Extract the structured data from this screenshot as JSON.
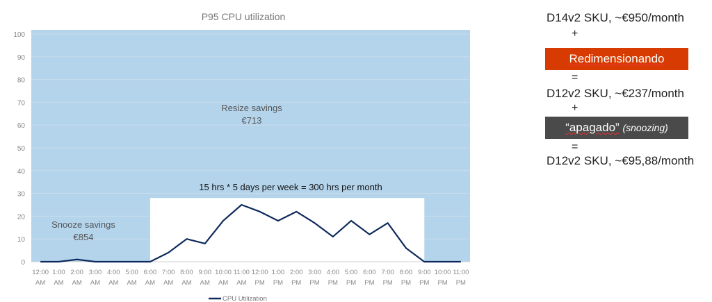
{
  "chart_data": {
    "type": "line",
    "title": "P95 CPU utilization",
    "categories": [
      "12:00 AM",
      "1:00 AM",
      "2:00 AM",
      "3:00 AM",
      "4:00 AM",
      "5:00 AM",
      "6:00 AM",
      "7:00 AM",
      "8:00 AM",
      "9:00 AM",
      "10:00 AM",
      "11:00 AM",
      "12:00 PM",
      "1:00 PM",
      "2:00 PM",
      "3:00 PM",
      "4:00 PM",
      "5:00 PM",
      "6:00 PM",
      "7:00 PM",
      "8:00 PM",
      "9:00 PM",
      "10:00 PM",
      "11:00 PM"
    ],
    "series": [
      {
        "name": "CPU Utilization",
        "values": [
          0,
          0,
          1,
          0,
          0,
          0,
          0,
          4,
          10,
          8,
          18,
          25,
          22,
          18,
          22,
          17,
          11,
          18,
          12,
          17,
          6,
          0,
          0,
          0
        ],
        "color": "#0e2a5c"
      }
    ],
    "ylim": [
      0,
      100
    ],
    "yticks": [
      0,
      10,
      20,
      30,
      40,
      50,
      60,
      70,
      80,
      90,
      100
    ],
    "grid": true,
    "legend": "bottom",
    "shaded_region_color": "#b4d4ec",
    "active_window": {
      "from": "6:00 AM",
      "to": "9:00 PM",
      "ceiling": 28
    },
    "annotations": {
      "resize": [
        "Resize savings",
        "€713"
      ],
      "snooze": [
        "Snooze savings",
        "€854"
      ],
      "window": "15 hrs * 5 days per week = 300 hrs per month"
    }
  },
  "side": {
    "line1": "D14v2 SKU, ~€950/month",
    "plus1": "+",
    "resize_label": "Redimensionando",
    "eq1": "=",
    "line2": "D12v2 SKU, ~€237/month",
    "plus2": "+",
    "snooze_quote": "“apagado”",
    "snooze_note": "(snoozing)",
    "eq2": "=",
    "line3": "D12v2 SKU, ~€95,88/month",
    "orange": "#d83b01",
    "gray": "#4a4a4a"
  }
}
